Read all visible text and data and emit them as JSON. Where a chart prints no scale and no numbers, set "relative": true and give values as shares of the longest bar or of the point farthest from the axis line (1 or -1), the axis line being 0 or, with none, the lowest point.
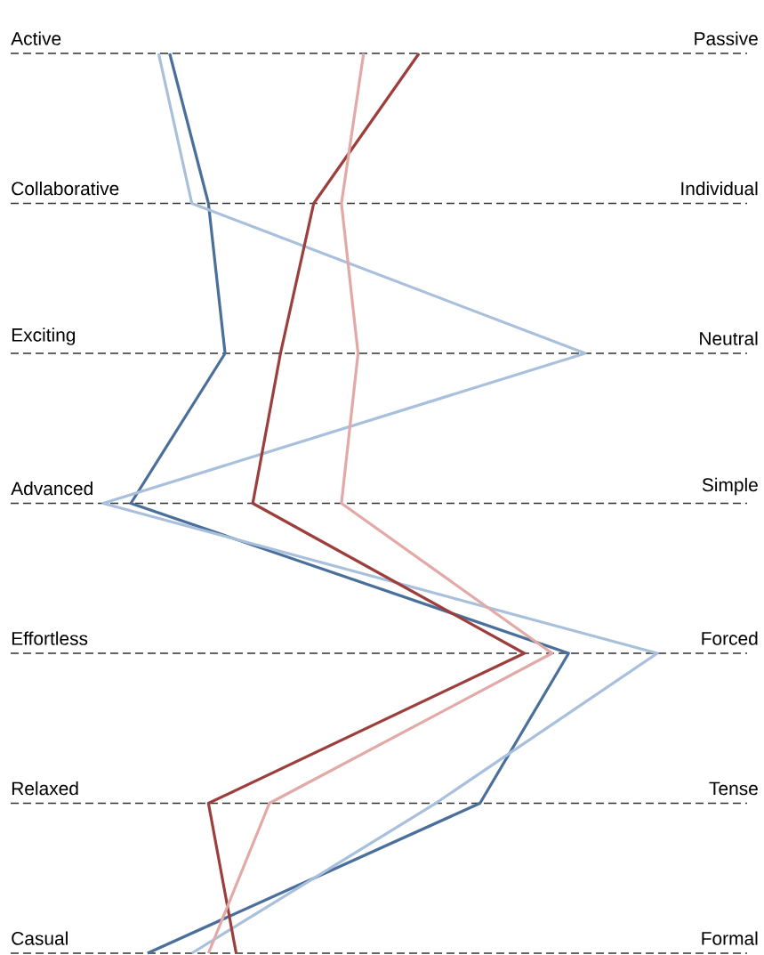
{
  "chart_data": {
    "type": "line",
    "relative": true,
    "orientation": "horizontal",
    "grid": true,
    "marker": "none",
    "line_style": "solid",
    "categories": [
      "Active",
      "Collaborative",
      "Exciting",
      "Advanced",
      "Effortless",
      "Relaxed",
      "Casual"
    ],
    "annotations": [
      "Passive",
      "Individual",
      "Neutral",
      "Simple",
      "Forced",
      "Tense",
      "Formal"
    ],
    "series": [
      {
        "color": "#4a6f9a",
        "values": [
          0.12,
          0.19,
          0.22,
          0.05,
          0.84,
          0.68,
          0.08
        ]
      },
      {
        "color": "#a9c0dc",
        "values": [
          0.1,
          0.16,
          0.87,
          0,
          1,
          0.6,
          0.16
        ]
      },
      {
        "color": "#9c3f3c",
        "values": [
          0.57,
          0.38,
          0.32,
          0.27,
          0.76,
          0.19,
          0.24
        ]
      },
      {
        "color": "#e2a9a7",
        "values": [
          0.47,
          0.43,
          0.46,
          0.43,
          0.81,
          0.3,
          0.19
        ]
      }
    ]
  }
}
